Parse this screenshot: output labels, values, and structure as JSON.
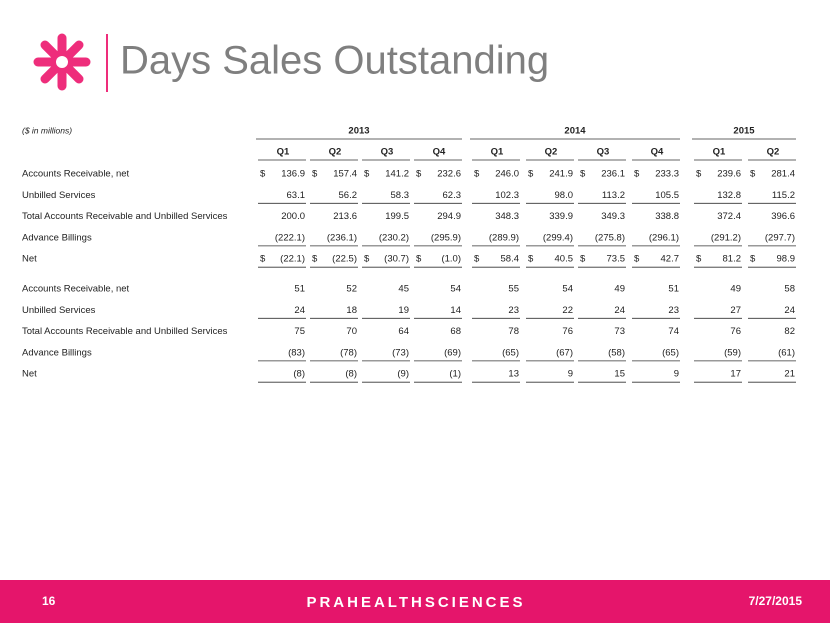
{
  "header": {
    "title": "Days Sales Outstanding"
  },
  "table": {
    "note": "($ in millions)",
    "years": [
      "2013",
      "2014",
      "2015"
    ],
    "quarters": [
      "Q1",
      "Q2",
      "Q3",
      "Q4",
      "Q1",
      "Q2",
      "Q3",
      "Q4",
      "Q1",
      "Q2"
    ],
    "sections": [
      {
        "rows": [
          {
            "label": "Accounts Receivable, net",
            "prefix": "$",
            "cells": [
              "136.9",
              "157.4",
              "141.2",
              "232.6",
              "246.0",
              "241.9",
              "236.1",
              "233.3",
              "239.6",
              "281.4"
            ]
          },
          {
            "label": "Unbilled Services",
            "underline": true,
            "cells": [
              "63.1",
              "56.2",
              "58.3",
              "62.3",
              "102.3",
              "98.0",
              "113.2",
              "105.5",
              "132.8",
              "115.2"
            ]
          },
          {
            "label": "Total Accounts Receivable and Unbilled Services",
            "cells": [
              "200.0",
              "213.6",
              "199.5",
              "294.9",
              "348.3",
              "339.9",
              "349.3",
              "338.8",
              "372.4",
              "396.6"
            ]
          },
          {
            "label": "Advance Billings",
            "underline": true,
            "cells": [
              "(222.1)",
              "(236.1)",
              "(230.2)",
              "(295.9)",
              "(289.9)",
              "(299.4)",
              "(275.8)",
              "(296.1)",
              "(291.2)",
              "(297.7)"
            ]
          },
          {
            "label": "Net",
            "prefix": "$",
            "underline": true,
            "cells": [
              "(22.1)",
              "(22.5)",
              "(30.7)",
              "(1.0)",
              "58.4",
              "40.5",
              "73.5",
              "42.7",
              "81.2",
              "98.9"
            ]
          }
        ]
      },
      {
        "rows": [
          {
            "label": "Accounts Receivable, net",
            "cells": [
              "51",
              "52",
              "45",
              "54",
              "55",
              "54",
              "49",
              "51",
              "49",
              "58"
            ]
          },
          {
            "label": "Unbilled Services",
            "underline": true,
            "cells": [
              "24",
              "18",
              "19",
              "14",
              "23",
              "22",
              "24",
              "23",
              "27",
              "24"
            ]
          },
          {
            "label": "Total Accounts Receivable and Unbilled Services",
            "cells": [
              "75",
              "70",
              "64",
              "68",
              "78",
              "76",
              "73",
              "74",
              "76",
              "82"
            ]
          },
          {
            "label": "Advance Billings",
            "underline": true,
            "cells": [
              "(83)",
              "(78)",
              "(73)",
              "(69)",
              "(65)",
              "(67)",
              "(58)",
              "(65)",
              "(59)",
              "(61)"
            ]
          },
          {
            "label": "Net",
            "underline": true,
            "cells": [
              "(8)",
              "(8)",
              "(9)",
              "(1)",
              "13",
              "9",
              "15",
              "9",
              "17",
              "21"
            ]
          }
        ]
      }
    ]
  },
  "footer": {
    "page": "16",
    "brand": "PRAHEALTHSCIENCES",
    "date": "7/27/2015"
  }
}
